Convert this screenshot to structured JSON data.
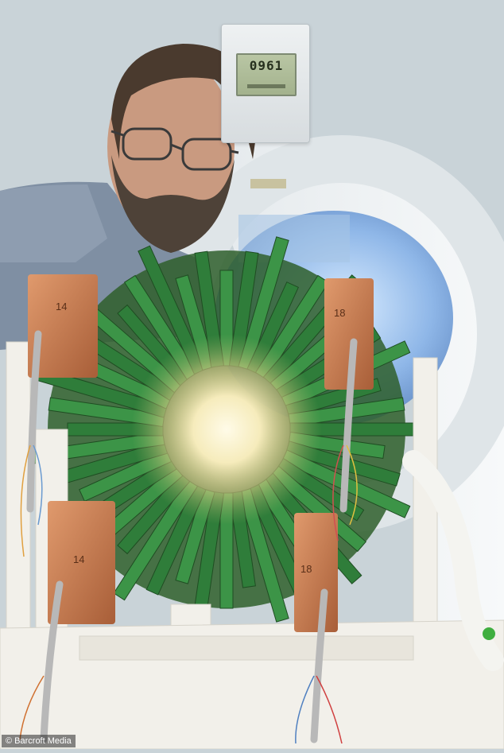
{
  "scene": {
    "subject": "bearded man with glasses behind a spherical array of green circuit boards in front of an MRI scanner",
    "colors": {
      "wall": "#c9d3d8",
      "scanner_shell": "#eef1f3",
      "scanner_bore_glow": "#8fb7e8",
      "shirt": "#7f8fa3",
      "skin": "#c99a80",
      "beard": "#4e4238",
      "circuit_green": "#2f7d3a",
      "copper_block": "#c37a4f",
      "center_glow": "#fff7d6",
      "frame_white": "#f2f0ea"
    }
  },
  "display": {
    "readout": "0961"
  },
  "blocks": [
    {
      "label": "14"
    },
    {
      "label": "18"
    },
    {
      "label": "14"
    },
    {
      "label": "18"
    }
  ],
  "credit": {
    "text": "© Barcroft Media"
  }
}
